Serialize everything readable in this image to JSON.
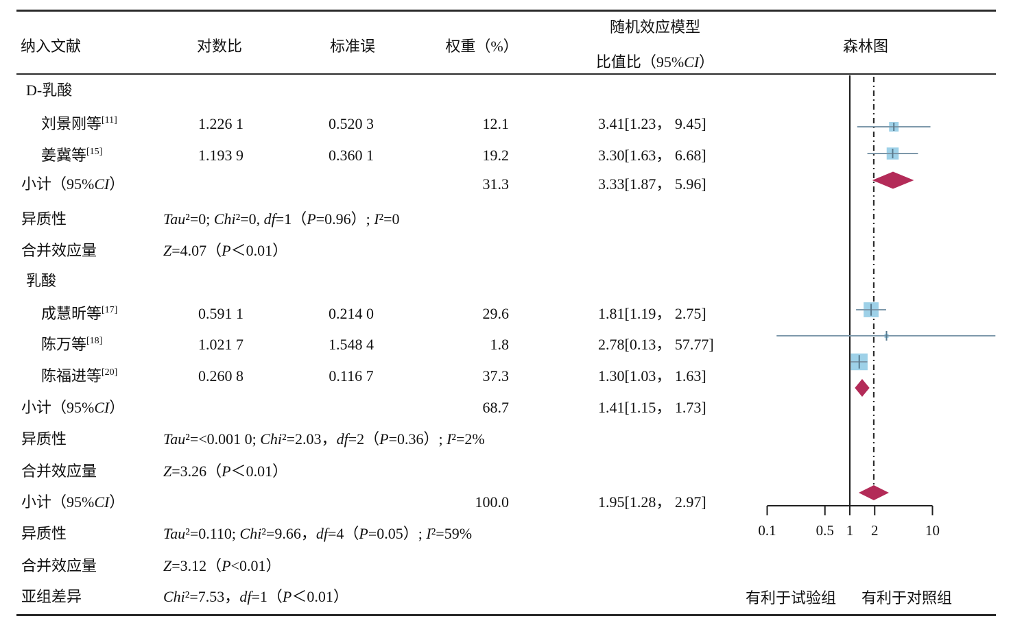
{
  "table": {
    "headers": {
      "study": "纳入文献",
      "logor": "对数比",
      "se": "标准误",
      "weight": "权重（%）",
      "model_line1": "随机效应模型",
      "model_line2": "比值比（95%CI）",
      "forest": "森林图"
    },
    "rows": [
      {
        "type": "group",
        "label": "D-乳酸"
      },
      {
        "type": "study",
        "label": "刘景刚等",
        "ref": "[11]",
        "logor": "1.226 1",
        "se": "0.520 3",
        "weight": "12.1",
        "or_text": "3.41[1.23， 9.45]"
      },
      {
        "type": "study",
        "label": "姜冀等",
        "ref": "[15]",
        "logor": "1.193 9",
        "se": "0.360 1",
        "weight": "19.2",
        "or_text": "3.30[1.63， 6.68]"
      },
      {
        "type": "subtotal",
        "label": "小计（95%CI）",
        "weight": "31.3",
        "or_text": "3.33[1.87， 5.96]"
      },
      {
        "type": "stat",
        "label": "异质性",
        "text": "Tau²=0; Chi²=0, df=1（P=0.96）; I²=0"
      },
      {
        "type": "stat",
        "label": "合并效应量",
        "text": "Z=4.07（P＜0.01）"
      },
      {
        "type": "group",
        "label": "乳酸"
      },
      {
        "type": "study",
        "label": "成慧昕等",
        "ref": "[17]",
        "logor": "0.591 1",
        "se": "0.214 0",
        "weight": "29.6",
        "or_text": "1.81[1.19， 2.75]"
      },
      {
        "type": "study",
        "label": "陈万等",
        "ref": "[18]",
        "logor": "1.021 7",
        "se": "1.548 4",
        "weight": "1.8",
        "or_text": "2.78[0.13， 57.77]"
      },
      {
        "type": "study",
        "label": "陈福进等",
        "ref": "[20]",
        "logor": "0.260 8",
        "se": "0.116 7",
        "weight": "37.3",
        "or_text": "1.30[1.03， 1.63]"
      },
      {
        "type": "subtotal",
        "label": "小计（95%CI）",
        "weight": "68.7",
        "or_text": "1.41[1.15， 1.73]"
      },
      {
        "type": "stat",
        "label": "异质性",
        "text": "Tau²=<0.001 0; Chi²=2.03，df=2（P=0.36）; I²=2%"
      },
      {
        "type": "stat",
        "label": "合并效应量",
        "text": "Z=3.26（P＜0.01）"
      },
      {
        "type": "subtotal",
        "label": "小计（95%CI）",
        "weight": "100.0",
        "or_text": "1.95[1.28， 2.97]"
      },
      {
        "type": "stat",
        "label": "异质性",
        "text": "Tau²=0.110; Chi²=9.66，df=4（P=0.05）; I²=59%"
      },
      {
        "type": "stat",
        "label": "合并效应量",
        "text": "Z=3.12（P<0.01）"
      },
      {
        "type": "stat",
        "label": "亚组差异",
        "text": "Chi²=7.53，df=1（P＜0.01）"
      }
    ]
  },
  "chart_data": {
    "type": "forest",
    "x_scale": "log10",
    "x_ticks": [
      0.1,
      0.5,
      1,
      2,
      10
    ],
    "x_tick_labels": [
      "0.1",
      "0.5",
      "1",
      "2",
      "10"
    ],
    "ref_line": 1,
    "pooled_line": 1.95,
    "groups": [
      {
        "name": "D-乳酸",
        "studies": [
          {
            "label": "刘景刚等[11]",
            "or": 3.41,
            "ci_low": 1.23,
            "ci_high": 9.45,
            "weight": 12.1
          },
          {
            "label": "姜冀等[15]",
            "or": 3.3,
            "ci_low": 1.63,
            "ci_high": 6.68,
            "weight": 19.2
          }
        ],
        "subtotal": {
          "label": "小计（95%CI）",
          "or": 3.33,
          "ci_low": 1.87,
          "ci_high": 5.96,
          "weight": 31.3
        }
      },
      {
        "name": "乳酸",
        "studies": [
          {
            "label": "成慧昕等[17]",
            "or": 1.81,
            "ci_low": 1.19,
            "ci_high": 2.75,
            "weight": 29.6
          },
          {
            "label": "陈万等[18]",
            "or": 2.78,
            "ci_low": 0.13,
            "ci_high": 57.77,
            "weight": 1.8
          },
          {
            "label": "陈福进等[20]",
            "or": 1.3,
            "ci_low": 1.03,
            "ci_high": 1.63,
            "weight": 37.3
          }
        ],
        "subtotal": {
          "label": "小计（95%CI）",
          "or": 1.41,
          "ci_low": 1.15,
          "ci_high": 1.73,
          "weight": 68.7
        }
      }
    ],
    "overall": {
      "label": "小计（95%CI）",
      "or": 1.95,
      "ci_low": 1.28,
      "ci_high": 2.97,
      "weight": 100.0
    },
    "favors_left": "有利于试验组",
    "favors_right": "有利于对照组"
  },
  "colors": {
    "effect_square": "#9ed1e8",
    "ci_whisker": "#7d98aa",
    "cross": "#587a8e",
    "diamond": "#b32b58",
    "axis_line": "#1f1f1f"
  }
}
